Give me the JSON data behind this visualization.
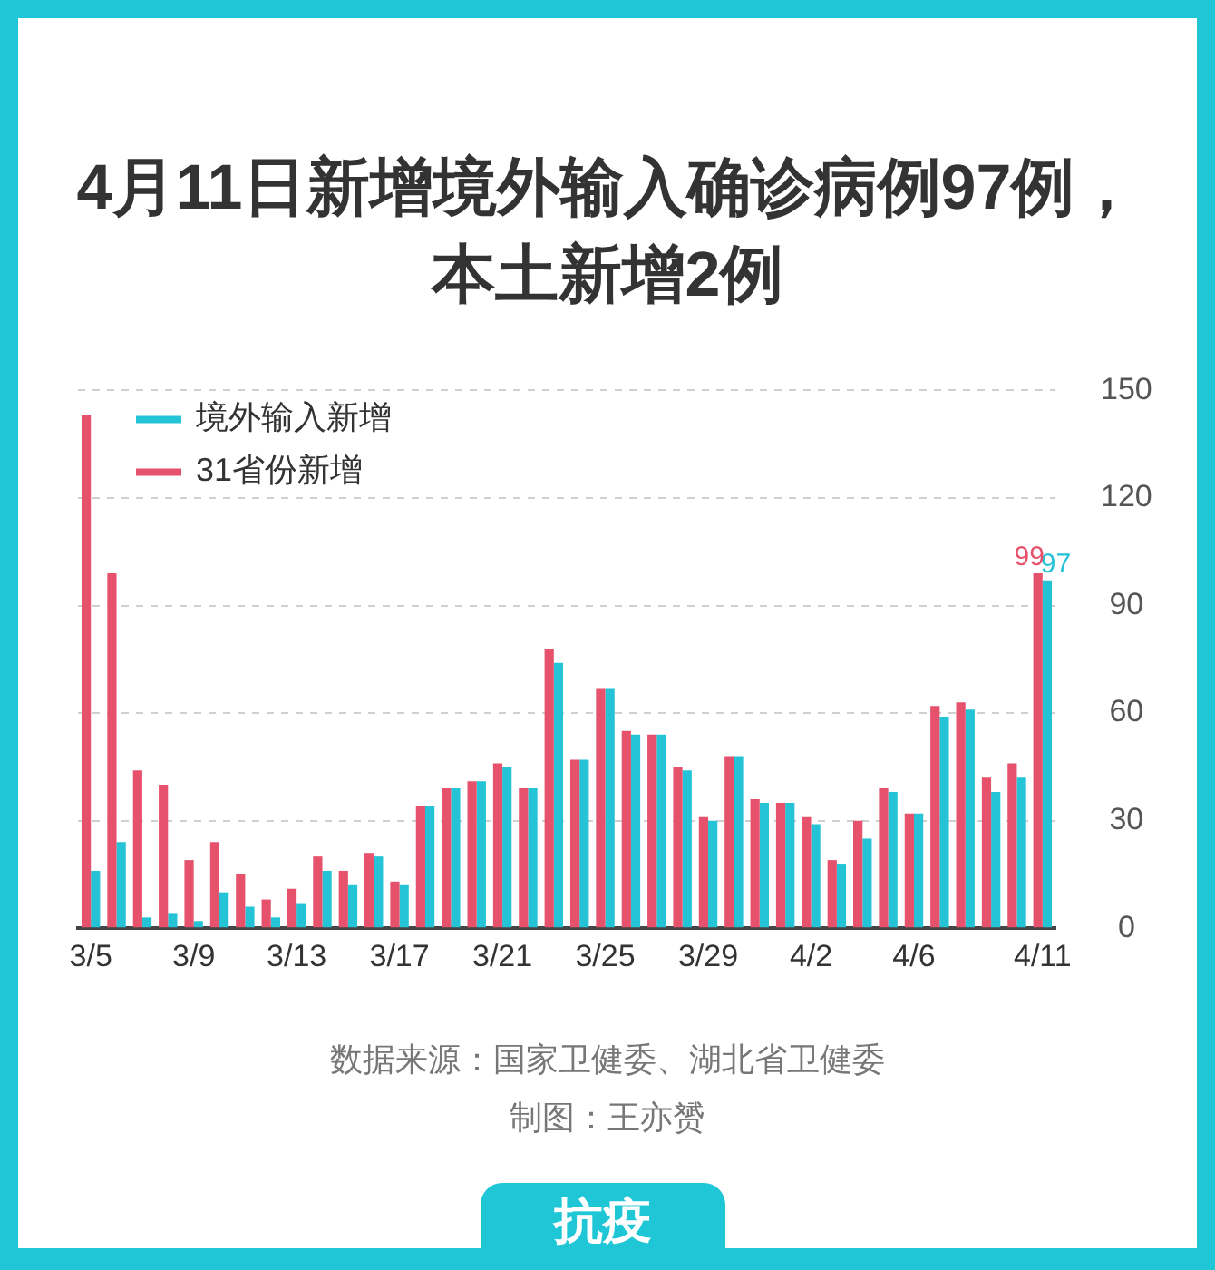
{
  "chart_data": {
    "type": "bar",
    "title": "4月11日新增境外输入确诊病例97例，本土新增2例",
    "categories": [
      "3/5",
      null,
      null,
      null,
      "3/9",
      null,
      null,
      null,
      "3/13",
      null,
      null,
      null,
      "3/17",
      null,
      null,
      null,
      "3/21",
      null,
      null,
      null,
      "3/25",
      null,
      null,
      null,
      "3/29",
      null,
      null,
      null,
      "4/2",
      null,
      null,
      null,
      "4/6",
      null,
      null,
      null,
      null,
      "4/11"
    ],
    "series": [
      {
        "name": "境外输入新增",
        "color": "#25c3d6",
        "values": [
          16,
          24,
          3,
          4,
          2,
          10,
          6,
          3,
          7,
          16,
          12,
          20,
          12,
          34,
          39,
          41,
          45,
          39,
          74,
          47,
          67,
          54,
          54,
          44,
          30,
          48,
          35,
          35,
          29,
          18,
          25,
          38,
          32,
          59,
          61,
          38,
          42,
          97
        ],
        "value_labels": [
          null,
          null,
          null,
          null,
          null,
          null,
          null,
          null,
          null,
          null,
          null,
          null,
          null,
          null,
          null,
          null,
          null,
          null,
          null,
          null,
          null,
          null,
          null,
          null,
          null,
          null,
          null,
          null,
          null,
          null,
          null,
          null,
          null,
          null,
          null,
          null,
          null,
          "97"
        ]
      },
      {
        "name": "31省份新增",
        "color": "#e6516b",
        "values": [
          143,
          99,
          44,
          40,
          19,
          24,
          15,
          8,
          11,
          20,
          16,
          21,
          13,
          34,
          39,
          41,
          46,
          39,
          78,
          47,
          67,
          55,
          54,
          45,
          31,
          48,
          36,
          35,
          31,
          19,
          30,
          39,
          32,
          62,
          63,
          42,
          46,
          99
        ],
        "value_labels": [
          null,
          null,
          null,
          null,
          null,
          null,
          null,
          null,
          null,
          null,
          null,
          null,
          null,
          null,
          null,
          null,
          null,
          null,
          null,
          null,
          null,
          null,
          null,
          null,
          null,
          null,
          null,
          null,
          null,
          null,
          null,
          null,
          null,
          null,
          null,
          null,
          null,
          "99"
        ]
      }
    ],
    "ylim": [
      0,
      150
    ],
    "yticks": [
      0,
      30,
      60,
      90,
      120,
      150
    ],
    "grid": "y",
    "legend": "top left",
    "annotations": [
      "数据来源：国家卫健委、湖北省卫健委",
      "制图：王亦赟",
      "抗疫"
    ]
  }
}
